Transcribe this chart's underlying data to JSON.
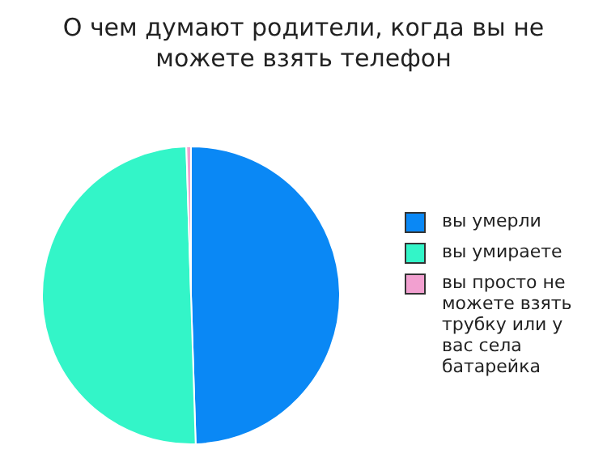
{
  "chart_data": {
    "type": "pie",
    "title": "О чем думают родители, когда вы не можете взять телефон",
    "categories": [
      "вы умерли",
      "вы умираете",
      "вы просто не можете взять трубку или у вас села батарейка"
    ],
    "values": [
      49.5,
      50,
      0.5
    ],
    "colors": [
      "#0a88f5",
      "#33f5c8",
      "#f2a0d0"
    ],
    "legend": "right"
  }
}
